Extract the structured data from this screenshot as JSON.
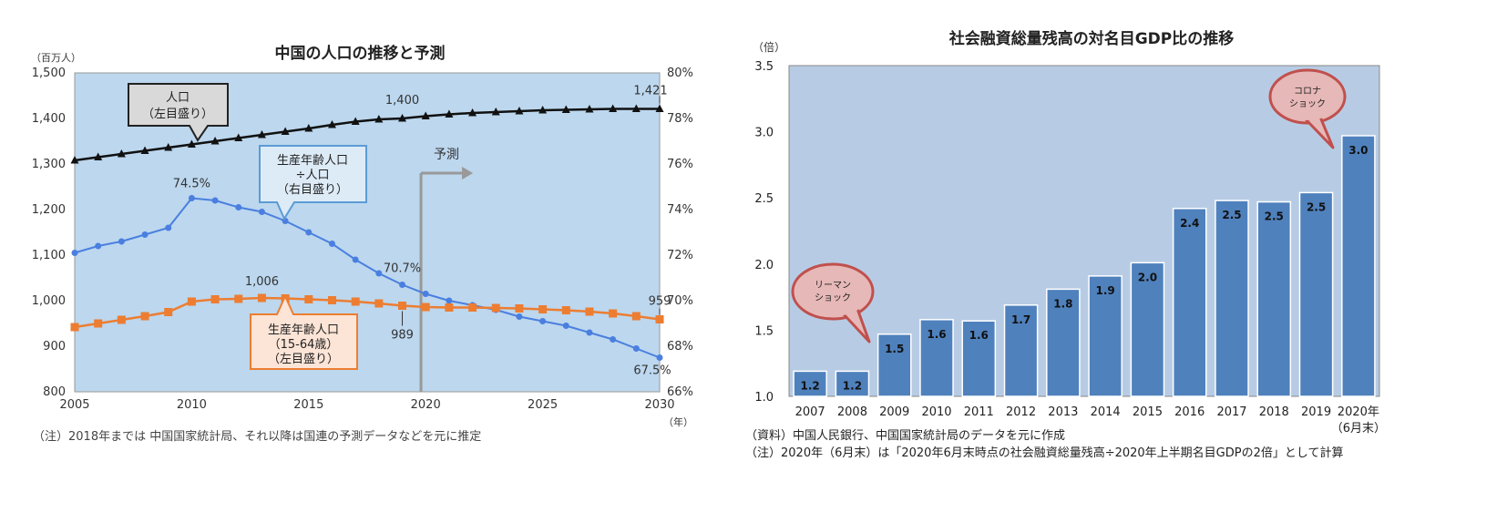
{
  "left": {
    "title": "中国の人口の推移と予測",
    "left_unit": "（百万人）",
    "x_unit": "（年）",
    "note": "（注）2018年までは 中国国家統計局、それ以降は国連の予測データなどを元に推定",
    "forecast_label": "予測",
    "callouts": {
      "population": [
        "人口",
        "（左目盛り）"
      ],
      "ratio": [
        "生産年齢人口",
        "÷人口",
        "（右目盛り）"
      ],
      "working": [
        "生産年齢人口",
        "（15-64歳）",
        "（左目盛り）"
      ]
    },
    "colors": {
      "plot_bg": "#bcd7ee",
      "population": "#111111",
      "ratio": "#4a7fe0",
      "working": "#ed7d31",
      "forecast": "#999999"
    },
    "chart_data": {
      "type": "line",
      "x_ticks": [
        "2005",
        "2010",
        "2015",
        "2020",
        "2025",
        "2030"
      ],
      "xlim": [
        2005,
        2030
      ],
      "left_ticks": [
        "800",
        "900",
        "1,000",
        "1,100",
        "1,200",
        "1,300",
        "1,400",
        "1,500"
      ],
      "ylim_left": [
        800,
        1500
      ],
      "right_ticks": [
        "66%",
        "68%",
        "70%",
        "72%",
        "74%",
        "76%",
        "78%",
        "80%"
      ],
      "ylim_right": [
        66,
        80
      ],
      "x": [
        2005,
        2006,
        2007,
        2008,
        2009,
        2010,
        2011,
        2012,
        2013,
        2014,
        2015,
        2016,
        2017,
        2018,
        2019,
        2020,
        2021,
        2022,
        2023,
        2024,
        2025,
        2026,
        2027,
        2028,
        2029,
        2030
      ],
      "series": [
        {
          "name": "人口",
          "axis": "left",
          "values": [
            1308,
            1315,
            1322,
            1329,
            1336,
            1343,
            1350,
            1357,
            1364,
            1371,
            1378,
            1386,
            1393,
            1398,
            1400,
            1405,
            1409,
            1412,
            1414,
            1416,
            1418,
            1419,
            1420,
            1421,
            1421,
            1421
          ]
        },
        {
          "name": "生産年齢人口÷人口",
          "axis": "right",
          "values": [
            72.1,
            72.4,
            72.6,
            72.9,
            73.2,
            74.5,
            74.4,
            74.1,
            73.9,
            73.5,
            73.0,
            72.5,
            71.8,
            71.2,
            70.7,
            70.3,
            70.0,
            69.8,
            69.6,
            69.3,
            69.1,
            68.9,
            68.6,
            68.3,
            67.9,
            67.5
          ]
        },
        {
          "name": "生産年齢人口",
          "axis": "left",
          "values": [
            942,
            950,
            958,
            966,
            975,
            998,
            1003,
            1004,
            1006,
            1005,
            1003,
            1001,
            998,
            994,
            989,
            986,
            985,
            985,
            984,
            983,
            981,
            979,
            976,
            972,
            966,
            959
          ]
        }
      ],
      "forecast_start": 2019.8,
      "data_labels": [
        {
          "text": "1,400",
          "series": 0,
          "x": 2019
        },
        {
          "text": "1,421",
          "series": 0,
          "x": 2030
        },
        {
          "text": "74.5%",
          "series": 1,
          "x": 2010
        },
        {
          "text": "70.7%",
          "series": 1,
          "x": 2019
        },
        {
          "text": "67.5%",
          "series": 1,
          "x": 2030
        },
        {
          "text": "1,006",
          "series": 2,
          "x": 2013
        },
        {
          "text": "989",
          "series": 2,
          "x": 2019
        },
        {
          "text": "959",
          "series": 2,
          "x": 2030
        }
      ]
    }
  },
  "right": {
    "title": "社会融資総量残高の対名目GDP比の推移",
    "unit": "（倍）",
    "source": "（資料）中国人民銀行、中国国家統計局のデータを元に作成",
    "note": "（注）2020年（6月末）は「2020年6月末時点の社会融資総量残高÷2020年上半期名目GDPの2倍」として計算",
    "callouts": {
      "lehman": [
        "リーマン",
        "ショック"
      ],
      "corona": [
        "コロナ",
        "ショック"
      ]
    },
    "colors": {
      "plot_bg": "#b7cce4",
      "bar": "#4f81bd",
      "bubble": "#e6b8b7",
      "bubble_border": "#c0504d"
    },
    "chart_data": {
      "type": "bar",
      "categories": [
        "2007",
        "2008",
        "2009",
        "2010",
        "2011",
        "2012",
        "2013",
        "2014",
        "2015",
        "2016",
        "2017",
        "2018",
        "2019",
        "2020年"
      ],
      "last_category_sub": "（6月末）",
      "values": [
        1.19,
        1.19,
        1.47,
        1.58,
        1.57,
        1.69,
        1.81,
        1.91,
        2.01,
        2.42,
        2.48,
        2.47,
        2.54,
        2.97
      ],
      "labels": [
        "1.2",
        "1.2",
        "1.5",
        "1.6",
        "1.6",
        "1.7",
        "1.8",
        "1.9",
        "2.0",
        "2.4",
        "2.5",
        "2.5",
        "2.5",
        "3.0"
      ],
      "y_ticks": [
        "1.0",
        "1.5",
        "2.0",
        "2.5",
        "3.0",
        "3.5"
      ],
      "ylim": [
        1.0,
        3.5
      ]
    }
  }
}
